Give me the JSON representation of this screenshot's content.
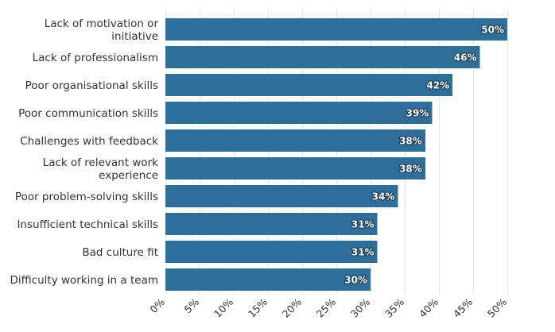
{
  "chart_data": {
    "type": "bar",
    "orientation": "horizontal",
    "categories": [
      "Lack of motivation or initiative",
      "Lack of professionalism",
      "Poor organisational skills",
      "Poor communication skills",
      "Challenges with feedback",
      "Lack of relevant work experience",
      "Poor problem-solving skills",
      "Insufficient technical skills",
      "Bad culture fit",
      "Difficulty working in a team"
    ],
    "category_lines": [
      [
        "Lack of motivation or",
        "initiative"
      ],
      [
        "Lack of professionalism"
      ],
      [
        "Poor organisational skills"
      ],
      [
        "Poor communication skills"
      ],
      [
        "Challenges with feedback"
      ],
      [
        "Lack of relevant work",
        "experience"
      ],
      [
        "Poor problem-solving skills"
      ],
      [
        "Insufficient technical skills"
      ],
      [
        "Bad culture fit"
      ],
      [
        "Difficulty working in a team"
      ]
    ],
    "values": [
      50,
      46,
      42,
      39,
      38,
      38,
      34,
      31,
      31,
      30
    ],
    "value_labels": [
      "50%",
      "46%",
      "42%",
      "39%",
      "38%",
      "38%",
      "34%",
      "31%",
      "31%",
      "30%"
    ],
    "xlim": [
      0,
      50
    ],
    "xticks": [
      0,
      5,
      10,
      15,
      20,
      25,
      30,
      35,
      40,
      45,
      50
    ],
    "xtick_labels": [
      "0%",
      "5%",
      "10%",
      "15%",
      "20%",
      "25%",
      "30%",
      "35%",
      "40%",
      "45%",
      "50%"
    ],
    "grid": true,
    "legend": "none",
    "bar_color": "#2f6e98",
    "title": "",
    "xlabel": "",
    "ylabel": ""
  }
}
